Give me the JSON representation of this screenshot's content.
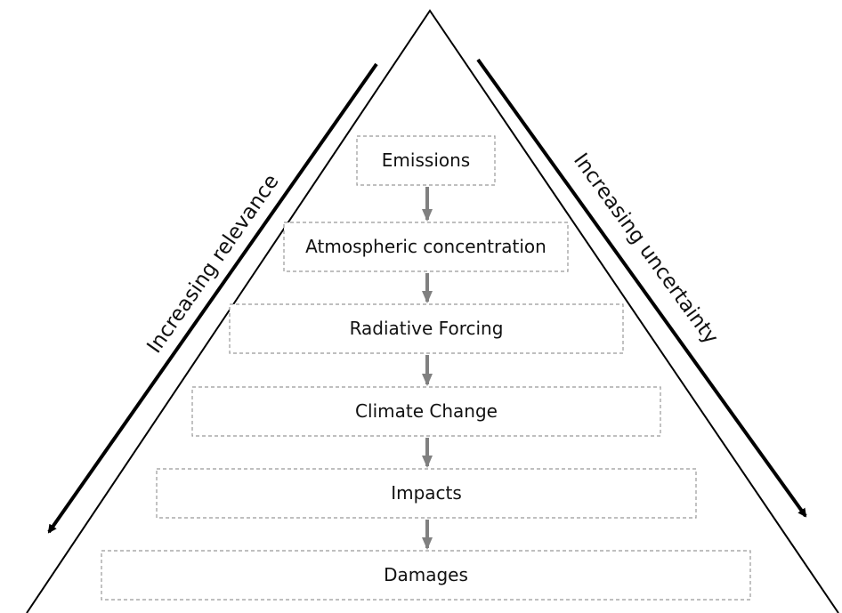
{
  "nodes": [
    {
      "label": "Emissions"
    },
    {
      "label": "Atmospheric concentration"
    },
    {
      "label": "Radiative Forcing"
    },
    {
      "label": "Climate Change"
    },
    {
      "label": "Impacts"
    },
    {
      "label": "Damages"
    }
  ],
  "left_arrow": {
    "label": "Increasing relevance"
  },
  "right_arrow": {
    "label": "Increasing uncertainty"
  }
}
